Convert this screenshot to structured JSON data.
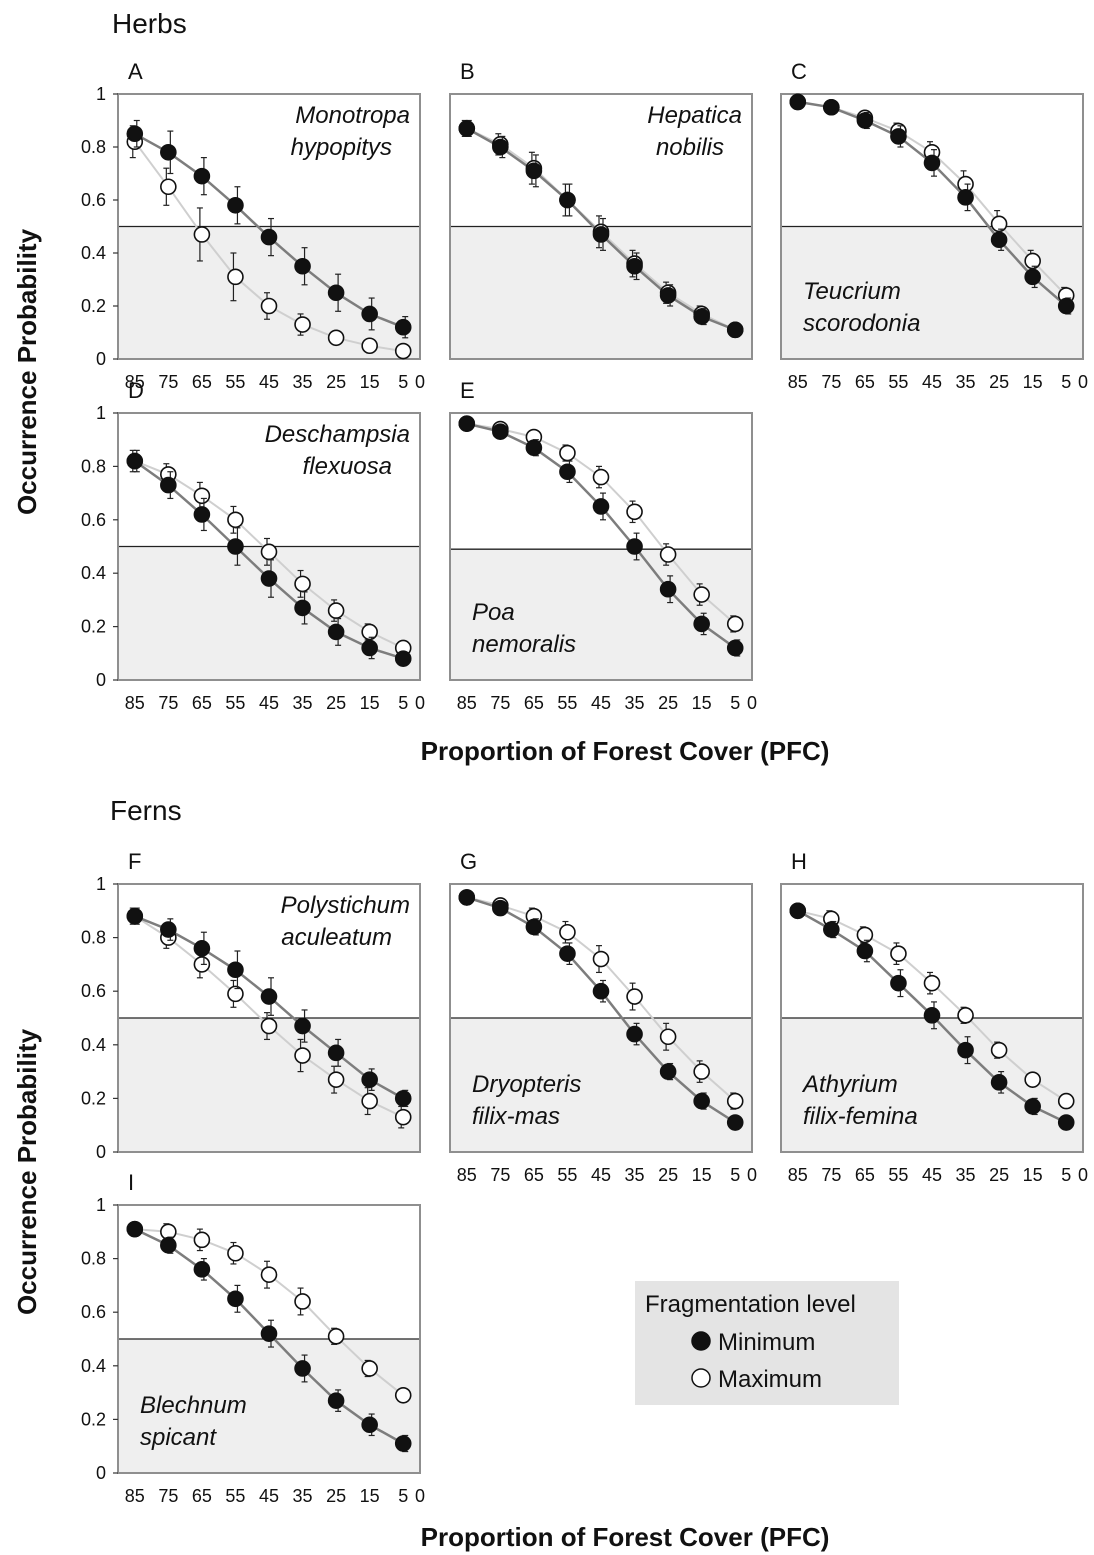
{
  "sections": {
    "herbs": "Herbs",
    "ferns": "Ferns"
  },
  "ylabel": "Occurrence Probability",
  "xlabel": "Proportion of Forest Cover (PFC)",
  "legend": {
    "title": "Fragmentation level",
    "min": "Minimum",
    "max": "Maximum"
  },
  "colors": {
    "min_line": "#7d7d7d",
    "max_line": "#cfcfcf",
    "shade": "#efefef",
    "frame": "#8f8f8f"
  },
  "chart_data": [
    {
      "type": "scatter",
      "panel": "A",
      "species": [
        "Monotropa",
        "hypopitys"
      ],
      "species_pos": "top",
      "x_ticks": [
        "85",
        "75",
        "65",
        "55",
        "45",
        "35",
        "25",
        "15",
        "5",
        "0"
      ],
      "y_ticks": [
        "0",
        "0.2",
        "0.4",
        "0.6",
        "0.8",
        "1"
      ],
      "xlim": [
        90,
        0
      ],
      "ylim": [
        0,
        1
      ],
      "threshold": 0.5,
      "x": [
        85,
        75,
        65,
        55,
        45,
        35,
        25,
        15,
        5
      ],
      "series": [
        {
          "name": "Minimum",
          "values": [
            0.85,
            0.78,
            0.69,
            0.58,
            0.46,
            0.35,
            0.25,
            0.17,
            0.12
          ],
          "err": [
            0.05,
            0.08,
            0.07,
            0.07,
            0.07,
            0.07,
            0.07,
            0.06,
            0.04
          ]
        },
        {
          "name": "Maximum",
          "values": [
            0.82,
            0.65,
            0.47,
            0.31,
            0.2,
            0.13,
            0.08,
            0.05,
            0.03
          ],
          "err": [
            0.06,
            0.07,
            0.1,
            0.09,
            0.05,
            0.04,
            0.02,
            0.01,
            0.01
          ]
        }
      ]
    },
    {
      "type": "scatter",
      "panel": "B",
      "species": [
        "Hepatica",
        "nobilis"
      ],
      "species_pos": "top",
      "x_ticks": [],
      "y_ticks": [],
      "xlim": [
        90,
        0
      ],
      "ylim": [
        0,
        1
      ],
      "threshold": 0.5,
      "x": [
        85,
        75,
        65,
        55,
        45,
        35,
        25,
        15,
        5
      ],
      "series": [
        {
          "name": "Minimum",
          "values": [
            0.87,
            0.8,
            0.71,
            0.6,
            0.47,
            0.35,
            0.24,
            0.16,
            0.11
          ],
          "err": [
            0.03,
            0.04,
            0.06,
            0.06,
            0.06,
            0.05,
            0.04,
            0.03,
            0.02
          ]
        },
        {
          "name": "Maximum",
          "values": [
            0.87,
            0.81,
            0.72,
            0.6,
            0.48,
            0.36,
            0.25,
            0.17,
            0.11
          ],
          "err": [
            0.03,
            0.04,
            0.06,
            0.06,
            0.06,
            0.05,
            0.04,
            0.03,
            0.02
          ]
        }
      ]
    },
    {
      "type": "scatter",
      "panel": "C",
      "species": [
        "Teucrium",
        "scorodonia"
      ],
      "species_pos": "bottom",
      "x_ticks": [
        "85",
        "75",
        "65",
        "55",
        "45",
        "35",
        "25",
        "15",
        "5",
        "0"
      ],
      "y_ticks": [],
      "xlim": [
        90,
        0
      ],
      "ylim": [
        0,
        1
      ],
      "threshold": 0.5,
      "x": [
        85,
        75,
        65,
        55,
        45,
        35,
        25,
        15,
        5
      ],
      "series": [
        {
          "name": "Minimum",
          "values": [
            0.97,
            0.95,
            0.9,
            0.84,
            0.74,
            0.61,
            0.45,
            0.31,
            0.2
          ],
          "err": [
            0.01,
            0.01,
            0.03,
            0.04,
            0.05,
            0.05,
            0.04,
            0.04,
            0.03
          ]
        },
        {
          "name": "Maximum",
          "values": [
            0.97,
            0.95,
            0.91,
            0.86,
            0.78,
            0.66,
            0.51,
            0.37,
            0.24
          ],
          "err": [
            0.01,
            0.01,
            0.02,
            0.03,
            0.04,
            0.05,
            0.05,
            0.04,
            0.03
          ]
        }
      ]
    },
    {
      "type": "scatter",
      "panel": "D",
      "species": [
        "Deschampsia",
        "flexuosa"
      ],
      "species_pos": "top",
      "x_ticks": [
        "85",
        "75",
        "65",
        "55",
        "45",
        "35",
        "25",
        "15",
        "5",
        "0"
      ],
      "y_ticks": [
        "0",
        "0.2",
        "0.4",
        "0.6",
        "0.8",
        "1"
      ],
      "xlim": [
        90,
        0
      ],
      "ylim": [
        0,
        1
      ],
      "threshold": 0.5,
      "x": [
        85,
        75,
        65,
        55,
        45,
        35,
        25,
        15,
        5
      ],
      "series": [
        {
          "name": "Minimum",
          "values": [
            0.82,
            0.73,
            0.62,
            0.5,
            0.38,
            0.27,
            0.18,
            0.12,
            0.08
          ],
          "err": [
            0.04,
            0.05,
            0.06,
            0.07,
            0.07,
            0.06,
            0.05,
            0.04,
            0.02
          ]
        },
        {
          "name": "Maximum",
          "values": [
            0.82,
            0.77,
            0.69,
            0.6,
            0.48,
            0.36,
            0.26,
            0.18,
            0.12
          ],
          "err": [
            0.04,
            0.04,
            0.05,
            0.05,
            0.05,
            0.05,
            0.04,
            0.03,
            0.02
          ]
        }
      ]
    },
    {
      "type": "scatter",
      "panel": "E",
      "species": [
        "Poa",
        "nemoralis"
      ],
      "species_pos": "bottom",
      "x_ticks": [
        "85",
        "75",
        "65",
        "55",
        "45",
        "35",
        "25",
        "15",
        "5",
        "0"
      ],
      "y_ticks": [],
      "xlim": [
        90,
        0
      ],
      "ylim": [
        0,
        1
      ],
      "threshold": 0.49,
      "x": [
        85,
        75,
        65,
        55,
        45,
        35,
        25,
        15,
        5
      ],
      "series": [
        {
          "name": "Minimum",
          "values": [
            0.96,
            0.93,
            0.87,
            0.78,
            0.65,
            0.5,
            0.34,
            0.21,
            0.12
          ],
          "err": [
            0.01,
            0.02,
            0.03,
            0.04,
            0.05,
            0.05,
            0.05,
            0.04,
            0.03
          ]
        },
        {
          "name": "Maximum",
          "values": [
            0.96,
            0.94,
            0.91,
            0.85,
            0.76,
            0.63,
            0.47,
            0.32,
            0.21
          ],
          "err": [
            0.01,
            0.02,
            0.02,
            0.03,
            0.04,
            0.04,
            0.04,
            0.04,
            0.03
          ]
        }
      ]
    },
    {
      "type": "scatter",
      "panel": "F",
      "species": [
        "Polystichum",
        "aculeatum"
      ],
      "species_pos": "top",
      "x_ticks": [],
      "y_ticks": [
        "0",
        "0.2",
        "0.4",
        "0.6",
        "0.8",
        "1"
      ],
      "xlim": [
        90,
        0
      ],
      "ylim": [
        0,
        1
      ],
      "threshold": 0.5,
      "x": [
        85,
        75,
        65,
        55,
        45,
        35,
        25,
        15,
        5
      ],
      "series": [
        {
          "name": "Minimum",
          "values": [
            0.88,
            0.83,
            0.76,
            0.68,
            0.58,
            0.47,
            0.37,
            0.27,
            0.2
          ],
          "err": [
            0.03,
            0.04,
            0.06,
            0.07,
            0.07,
            0.06,
            0.05,
            0.04,
            0.03
          ]
        },
        {
          "name": "Maximum",
          "values": [
            0.88,
            0.8,
            0.7,
            0.59,
            0.47,
            0.36,
            0.27,
            0.19,
            0.13
          ],
          "err": [
            0.03,
            0.04,
            0.05,
            0.05,
            0.05,
            0.06,
            0.05,
            0.05,
            0.04
          ]
        }
      ]
    },
    {
      "type": "scatter",
      "panel": "G",
      "species": [
        "Dryopteris",
        "filix-mas"
      ],
      "species_pos": "bottom",
      "x_ticks": [
        "85",
        "75",
        "65",
        "55",
        "45",
        "35",
        "25",
        "15",
        "5",
        "0"
      ],
      "y_ticks": [],
      "xlim": [
        90,
        0
      ],
      "ylim": [
        0,
        1
      ],
      "threshold": 0.5,
      "x": [
        85,
        75,
        65,
        55,
        45,
        35,
        25,
        15,
        5
      ],
      "series": [
        {
          "name": "Minimum",
          "values": [
            0.95,
            0.91,
            0.84,
            0.74,
            0.6,
            0.44,
            0.3,
            0.19,
            0.11
          ],
          "err": [
            0.01,
            0.02,
            0.03,
            0.04,
            0.04,
            0.04,
            0.03,
            0.03,
            0.02
          ]
        },
        {
          "name": "Maximum",
          "values": [
            0.95,
            0.92,
            0.88,
            0.82,
            0.72,
            0.58,
            0.43,
            0.3,
            0.19
          ],
          "err": [
            0.01,
            0.02,
            0.03,
            0.04,
            0.05,
            0.05,
            0.05,
            0.04,
            0.03
          ]
        }
      ]
    },
    {
      "type": "scatter",
      "panel": "H",
      "species": [
        "Athyrium",
        "filix-femina"
      ],
      "species_pos": "bottom",
      "x_ticks": [
        "85",
        "75",
        "65",
        "55",
        "45",
        "35",
        "25",
        "15",
        "5",
        "0"
      ],
      "y_ticks": [],
      "xlim": [
        90,
        0
      ],
      "ylim": [
        0,
        1
      ],
      "threshold": 0.5,
      "x": [
        85,
        75,
        65,
        55,
        45,
        35,
        25,
        15,
        5
      ],
      "series": [
        {
          "name": "Minimum",
          "values": [
            0.9,
            0.83,
            0.75,
            0.63,
            0.51,
            0.38,
            0.26,
            0.17,
            0.11
          ],
          "err": [
            0.02,
            0.03,
            0.04,
            0.05,
            0.05,
            0.05,
            0.04,
            0.03,
            0.02
          ]
        },
        {
          "name": "Maximum",
          "values": [
            0.9,
            0.87,
            0.81,
            0.74,
            0.63,
            0.51,
            0.38,
            0.27,
            0.19
          ],
          "err": [
            0.02,
            0.03,
            0.03,
            0.04,
            0.04,
            0.03,
            0.03,
            0.02,
            0.02
          ]
        }
      ]
    },
    {
      "type": "scatter",
      "panel": "I",
      "species": [
        "Blechnum",
        "spicant"
      ],
      "species_pos": "bottom",
      "x_ticks": [
        "85",
        "75",
        "65",
        "55",
        "45",
        "35",
        "25",
        "15",
        "5",
        "0"
      ],
      "y_ticks": [
        "0",
        "0.2",
        "0.4",
        "0.6",
        "0.8",
        "1"
      ],
      "xlim": [
        90,
        0
      ],
      "ylim": [
        0,
        1
      ],
      "threshold": 0.5,
      "x": [
        85,
        75,
        65,
        55,
        45,
        35,
        25,
        15,
        5
      ],
      "series": [
        {
          "name": "Minimum",
          "values": [
            0.91,
            0.85,
            0.76,
            0.65,
            0.52,
            0.39,
            0.27,
            0.18,
            0.11
          ],
          "err": [
            0.02,
            0.03,
            0.04,
            0.05,
            0.05,
            0.05,
            0.04,
            0.04,
            0.03
          ]
        },
        {
          "name": "Maximum",
          "values": [
            0.91,
            0.9,
            0.87,
            0.82,
            0.74,
            0.64,
            0.51,
            0.39,
            0.29
          ],
          "err": [
            0.02,
            0.03,
            0.04,
            0.04,
            0.05,
            0.05,
            0.03,
            0.03,
            0.02
          ]
        }
      ]
    }
  ]
}
